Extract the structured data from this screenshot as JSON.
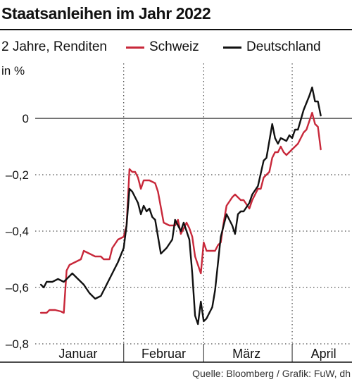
{
  "chart_data": {
    "type": "line",
    "title": "Staatsanleihen im Jahr 2022",
    "subtitle": "2 Jahre, Renditen",
    "ylabel": "in %",
    "source": "Quelle: Bloomberg / Grafik: FuW, dh",
    "ylim": [
      -0.8,
      0.12
    ],
    "yticks": [
      {
        "value": 0,
        "label": "0"
      },
      {
        "value": -0.2,
        "label": "–0,2"
      },
      {
        "value": -0.4,
        "label": "–0,4"
      },
      {
        "value": -0.6,
        "label": "–0,6"
      },
      {
        "value": -0.8,
        "label": "–0,8"
      }
    ],
    "x_range": [
      "2022-01-01",
      "2022-04-18"
    ],
    "months": [
      "Januar",
      "Februar",
      "März",
      "April"
    ],
    "legend_placement": "top",
    "series": [
      {
        "name": "Schweiz",
        "color": "#c8283a",
        "points": [
          [
            "2022-01-03",
            -0.69
          ],
          [
            "2022-01-05",
            -0.69
          ],
          [
            "2022-01-06",
            -0.68
          ],
          [
            "2022-01-08",
            -0.68
          ],
          [
            "2022-01-10",
            -0.685
          ],
          [
            "2022-01-11",
            -0.69
          ],
          [
            "2022-01-12",
            -0.54
          ],
          [
            "2022-01-13",
            -0.52
          ],
          [
            "2022-01-15",
            -0.51
          ],
          [
            "2022-01-17",
            -0.5
          ],
          [
            "2022-01-18",
            -0.47
          ],
          [
            "2022-01-20",
            -0.48
          ],
          [
            "2022-01-22",
            -0.49
          ],
          [
            "2022-01-24",
            -0.49
          ],
          [
            "2022-01-25",
            -0.5
          ],
          [
            "2022-01-27",
            -0.5
          ],
          [
            "2022-01-28",
            -0.46
          ],
          [
            "2022-01-30",
            -0.43
          ],
          [
            "2022-02-01",
            -0.42
          ],
          [
            "2022-02-02",
            -0.38
          ],
          [
            "2022-02-03",
            -0.18
          ],
          [
            "2022-02-04",
            -0.19
          ],
          [
            "2022-02-05",
            -0.19
          ],
          [
            "2022-02-06",
            -0.21
          ],
          [
            "2022-02-07",
            -0.25
          ],
          [
            "2022-02-08",
            -0.22
          ],
          [
            "2022-02-10",
            -0.22
          ],
          [
            "2022-02-12",
            -0.23
          ],
          [
            "2022-02-13",
            -0.26
          ],
          [
            "2022-02-15",
            -0.37
          ],
          [
            "2022-02-17",
            -0.38
          ],
          [
            "2022-02-19",
            -0.38
          ],
          [
            "2022-02-20",
            -0.36
          ],
          [
            "2022-02-21",
            -0.41
          ],
          [
            "2022-02-23",
            -0.37
          ],
          [
            "2022-02-24",
            -0.39
          ],
          [
            "2022-02-25",
            -0.42
          ],
          [
            "2022-02-26",
            -0.49
          ],
          [
            "2022-02-28",
            -0.55
          ],
          [
            "2022-03-01",
            -0.44
          ],
          [
            "2022-03-02",
            -0.47
          ],
          [
            "2022-03-03",
            -0.47
          ],
          [
            "2022-03-05",
            -0.47
          ],
          [
            "2022-03-06",
            -0.45
          ],
          [
            "2022-03-07",
            -0.44
          ],
          [
            "2022-03-08",
            -0.37
          ],
          [
            "2022-03-09",
            -0.31
          ],
          [
            "2022-03-11",
            -0.28
          ],
          [
            "2022-03-12",
            -0.27
          ],
          [
            "2022-03-14",
            -0.29
          ],
          [
            "2022-03-15",
            -0.29
          ],
          [
            "2022-03-17",
            -0.32
          ],
          [
            "2022-03-18",
            -0.29
          ],
          [
            "2022-03-20",
            -0.25
          ],
          [
            "2022-03-21",
            -0.25
          ],
          [
            "2022-03-22",
            -0.21
          ],
          [
            "2022-03-24",
            -0.19
          ],
          [
            "2022-03-25",
            -0.14
          ],
          [
            "2022-03-26",
            -0.12
          ],
          [
            "2022-03-27",
            -0.12
          ],
          [
            "2022-03-28",
            -0.1
          ],
          [
            "2022-03-29",
            -0.12
          ],
          [
            "2022-03-30",
            -0.13
          ],
          [
            "2022-04-01",
            -0.11
          ],
          [
            "2022-04-02",
            -0.1
          ],
          [
            "2022-04-03",
            -0.09
          ],
          [
            "2022-04-05",
            -0.05
          ],
          [
            "2022-04-06",
            -0.04
          ],
          [
            "2022-04-08",
            0.02
          ],
          [
            "2022-04-09",
            -0.02
          ],
          [
            "2022-04-10",
            -0.03
          ],
          [
            "2022-04-11",
            -0.11
          ]
        ]
      },
      {
        "name": "Deutschland",
        "color": "#111111",
        "points": [
          [
            "2022-01-03",
            -0.59
          ],
          [
            "2022-01-04",
            -0.6
          ],
          [
            "2022-01-05",
            -0.58
          ],
          [
            "2022-01-07",
            -0.58
          ],
          [
            "2022-01-09",
            -0.57
          ],
          [
            "2022-01-11",
            -0.58
          ],
          [
            "2022-01-13",
            -0.56
          ],
          [
            "2022-01-14",
            -0.55
          ],
          [
            "2022-01-16",
            -0.57
          ],
          [
            "2022-01-18",
            -0.59
          ],
          [
            "2022-01-20",
            -0.62
          ],
          [
            "2022-01-22",
            -0.64
          ],
          [
            "2022-01-24",
            -0.63
          ],
          [
            "2022-01-26",
            -0.59
          ],
          [
            "2022-01-28",
            -0.55
          ],
          [
            "2022-01-30",
            -0.51
          ],
          [
            "2022-02-01",
            -0.46
          ],
          [
            "2022-02-02",
            -0.38
          ],
          [
            "2022-02-03",
            -0.25
          ],
          [
            "2022-02-04",
            -0.26
          ],
          [
            "2022-02-06",
            -0.3
          ],
          [
            "2022-02-07",
            -0.34
          ],
          [
            "2022-02-08",
            -0.31
          ],
          [
            "2022-02-09",
            -0.33
          ],
          [
            "2022-02-10",
            -0.32
          ],
          [
            "2022-02-11",
            -0.35
          ],
          [
            "2022-02-12",
            -0.36
          ],
          [
            "2022-02-14",
            -0.48
          ],
          [
            "2022-02-16",
            -0.46
          ],
          [
            "2022-02-18",
            -0.43
          ],
          [
            "2022-02-19",
            -0.36
          ],
          [
            "2022-02-21",
            -0.4
          ],
          [
            "2022-02-22",
            -0.37
          ],
          [
            "2022-02-24",
            -0.43
          ],
          [
            "2022-02-25",
            -0.55
          ],
          [
            "2022-02-26",
            -0.7
          ],
          [
            "2022-02-27",
            -0.73
          ],
          [
            "2022-02-28",
            -0.65
          ],
          [
            "2022-03-01",
            -0.72
          ],
          [
            "2022-03-02",
            -0.71
          ],
          [
            "2022-03-03",
            -0.69
          ],
          [
            "2022-03-04",
            -0.67
          ],
          [
            "2022-03-05",
            -0.61
          ],
          [
            "2022-03-07",
            -0.42
          ],
          [
            "2022-03-08",
            -0.38
          ],
          [
            "2022-03-09",
            -0.34
          ],
          [
            "2022-03-11",
            -0.38
          ],
          [
            "2022-03-12",
            -0.41
          ],
          [
            "2022-03-13",
            -0.34
          ],
          [
            "2022-03-14",
            -0.33
          ],
          [
            "2022-03-15",
            -0.33
          ],
          [
            "2022-03-17",
            -0.3
          ],
          [
            "2022-03-18",
            -0.27
          ],
          [
            "2022-03-20",
            -0.24
          ],
          [
            "2022-03-22",
            -0.15
          ],
          [
            "2022-03-23",
            -0.14
          ],
          [
            "2022-03-25",
            -0.02
          ],
          [
            "2022-03-26",
            -0.07
          ],
          [
            "2022-03-27",
            -0.09
          ],
          [
            "2022-03-28",
            -0.07
          ],
          [
            "2022-03-30",
            -0.08
          ],
          [
            "2022-03-31",
            -0.06
          ],
          [
            "2022-04-01",
            -0.07
          ],
          [
            "2022-04-02",
            -0.04
          ],
          [
            "2022-04-03",
            -0.04
          ],
          [
            "2022-04-05",
            0.03
          ],
          [
            "2022-04-07",
            0.08
          ],
          [
            "2022-04-08",
            0.11
          ],
          [
            "2022-04-09",
            0.06
          ],
          [
            "2022-04-10",
            0.06
          ],
          [
            "2022-04-11",
            0.01
          ]
        ]
      }
    ]
  }
}
